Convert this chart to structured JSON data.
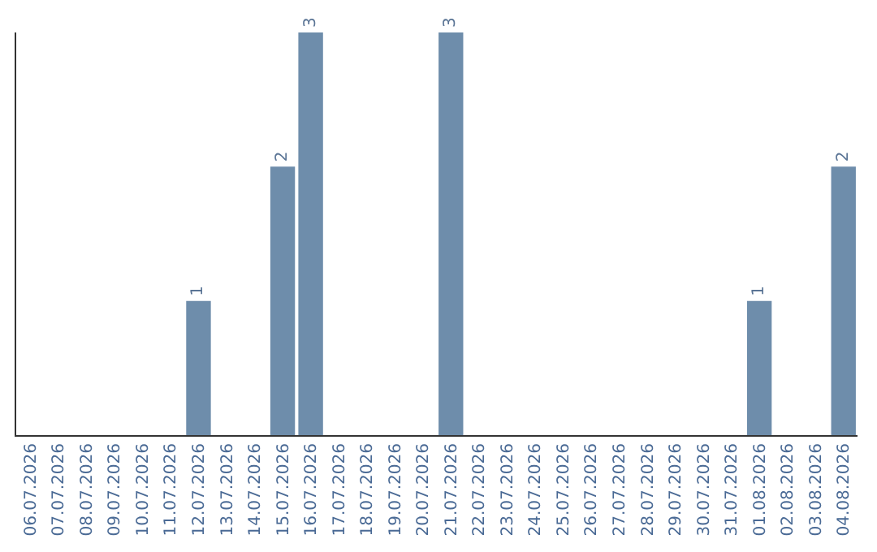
{
  "chart_data": {
    "type": "bar",
    "categories": [
      "06.07.2026",
      "07.07.2026",
      "08.07.2026",
      "09.07.2026",
      "10.07.2026",
      "11.07.2026",
      "12.07.2026",
      "13.07.2026",
      "14.07.2026",
      "15.07.2026",
      "16.07.2026",
      "17.07.2026",
      "18.07.2026",
      "19.07.2026",
      "20.07.2026",
      "21.07.2026",
      "22.07.2026",
      "23.07.2026",
      "24.07.2026",
      "25.07.2026",
      "26.07.2026",
      "27.07.2026",
      "28.07.2026",
      "29.07.2026",
      "30.07.2026",
      "31.07.2026",
      "01.08.2026",
      "02.08.2026",
      "03.08.2026",
      "04.08.2026"
    ],
    "values": [
      0,
      0,
      0,
      0,
      0,
      0,
      1,
      0,
      0,
      2,
      3,
      0,
      0,
      0,
      0,
      3,
      0,
      0,
      0,
      0,
      0,
      0,
      0,
      0,
      0,
      0,
      1,
      0,
      0,
      2
    ],
    "value_labels": [
      null,
      null,
      null,
      null,
      null,
      null,
      "1",
      null,
      null,
      "2",
      "3",
      null,
      null,
      null,
      null,
      "3",
      null,
      null,
      null,
      null,
      null,
      null,
      null,
      null,
      null,
      null,
      "1",
      null,
      null,
      "2"
    ],
    "color": "#6e8dab",
    "ylim": [
      0,
      3
    ],
    "tick_labels": "x"
  }
}
